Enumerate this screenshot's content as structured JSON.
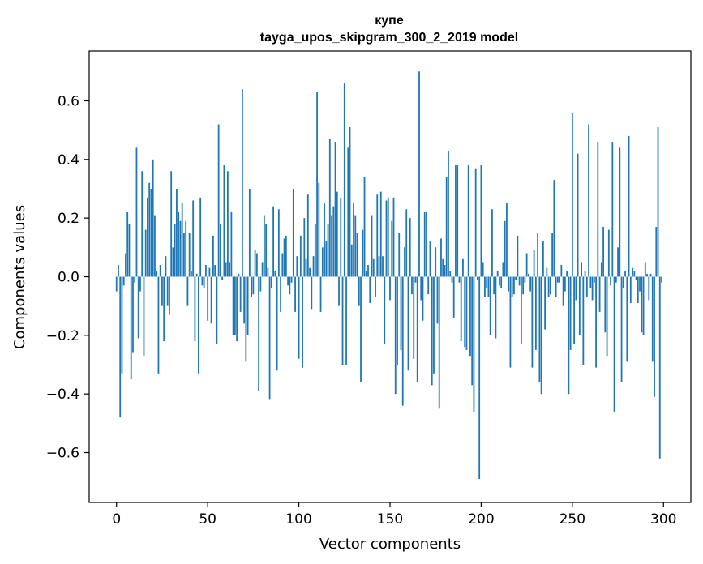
{
  "chart_data": {
    "type": "bar",
    "title_line1": "купе",
    "title_line2": "tayga_upos_skipgram_300_2_2019 model",
    "xlabel": "Vector components",
    "ylabel": "Components values",
    "xlim": [
      -15,
      315
    ],
    "ylim": [
      -0.77,
      0.77
    ],
    "xticks": [
      0,
      50,
      100,
      150,
      200,
      250,
      300
    ],
    "xtick_labels": [
      "0",
      "50",
      "100",
      "150",
      "200",
      "250",
      "300"
    ],
    "yticks": [
      -0.6,
      -0.4,
      -0.2,
      0.0,
      0.2,
      0.4,
      0.6
    ],
    "ytick_labels": [
      "−0.6",
      "−0.4",
      "−0.2",
      "0.0",
      "0.2",
      "0.4",
      "0.6"
    ],
    "bar_color": "#1f77b4",
    "values": [
      -0.05,
      0.04,
      -0.48,
      -0.33,
      -0.03,
      0.08,
      0.22,
      0.18,
      -0.35,
      -0.26,
      -0.02,
      0.44,
      -0.21,
      -0.05,
      0.36,
      -0.27,
      0.16,
      0.27,
      0.32,
      0.3,
      0.4,
      0.21,
      0.02,
      -0.33,
      0.04,
      -0.1,
      -0.22,
      0.07,
      -0.1,
      -0.13,
      0.36,
      0.1,
      0.18,
      0.3,
      0.22,
      0.19,
      0.25,
      0.15,
      0.19,
      -0.1,
      0.15,
      0.02,
      0.26,
      -0.22,
      0.01,
      -0.33,
      0.27,
      -0.03,
      -0.04,
      0.04,
      -0.15,
      0.03,
      -0.16,
      0.14,
      0.04,
      -0.23,
      0.52,
      0.18,
      -0.01,
      0.38,
      0.05,
      0.36,
      0.05,
      0.22,
      -0.2,
      -0.2,
      -0.22,
      0.01,
      -0.12,
      0.64,
      -0.16,
      -0.29,
      -0.2,
      0.3,
      -0.07,
      -0.06,
      0.09,
      0.08,
      -0.39,
      -0.05,
      0.05,
      0.21,
      0.18,
      0.03,
      -0.42,
      -0.04,
      0.24,
      0.02,
      -0.32,
      0.23,
      -0.12,
      0.08,
      0.13,
      0.14,
      -0.03,
      -0.06,
      -0.02,
      0.3,
      -0.12,
      0.07,
      -0.28,
      0.14,
      -0.31,
      0.2,
      0.06,
      0.28,
      0.03,
      -0.11,
      0.07,
      0.18,
      0.63,
      0.32,
      -0.12,
      0.1,
      0.25,
      0.12,
      0.18,
      0.47,
      0.21,
      0.24,
      0.46,
      0.29,
      -0.1,
      0.27,
      -0.3,
      0.66,
      -0.3,
      0.44,
      0.51,
      0.11,
      0.25,
      0.21,
      0.15,
      -0.1,
      -0.36,
      0.16,
      0.34,
      0.02,
      0.04,
      -0.09,
      0.21,
      0.06,
      -0.07,
      0.28,
      0.07,
      0.29,
      0.07,
      -0.23,
      0.26,
      0.27,
      -0.08,
      0.19,
      0.27,
      -0.4,
      -0.3,
      0.15,
      -0.25,
      -0.44,
      0.1,
      0.23,
      -0.32,
      0.2,
      -0.06,
      -0.28,
      -0.02,
      -0.36,
      0.7,
      -0.08,
      -0.15,
      0.22,
      0.22,
      -0.06,
      0.12,
      -0.37,
      -0.33,
      0.1,
      -0.16,
      -0.45,
      0.13,
      0.06,
      0.04,
      0.34,
      0.43,
      0.02,
      -0.02,
      -0.14,
      0.38,
      0.38,
      -0.02,
      -0.22,
      0.06,
      -0.24,
      -0.25,
      0.38,
      -0.27,
      -0.37,
      -0.46,
      0.37,
      -0.01,
      -0.69,
      0.38,
      0.05,
      -0.07,
      -0.04,
      -0.07,
      -0.2,
      0.23,
      -0.06,
      -0.21,
      0.02,
      -0.03,
      -0.04,
      0.05,
      0.19,
      0.25,
      -0.05,
      -0.31,
      -0.07,
      -0.06,
      -0.01,
      0.14,
      -0.03,
      -0.23,
      -0.06,
      -0.02,
      0.08,
      0.01,
      -0.05,
      -0.31,
      0.09,
      -0.25,
      0.15,
      -0.36,
      -0.4,
      0.12,
      -0.18,
      0.03,
      -0.07,
      -0.06,
      0.15,
      0.33,
      -0.07,
      -0.02,
      -0.02,
      0.04,
      -0.1,
      -0.05,
      0.02,
      -0.4,
      -0.25,
      0.56,
      -0.23,
      -0.08,
      0.42,
      -0.2,
      0.05,
      -0.3,
      0.02,
      -0.07,
      0.52,
      -0.04,
      -0.08,
      -0.02,
      -0.31,
      0.46,
      -0.12,
      0.05,
      0.17,
      -0.19,
      -0.27,
      0.16,
      -0.03,
      0.46,
      -0.46,
      -0.02,
      0.1,
      0.44,
      -0.36,
      -0.04,
      0.02,
      -0.29,
      0.48,
      -0.09,
      0.03,
      0.02,
      -0.01,
      -0.09,
      -0.05,
      -0.19,
      -0.2,
      0.05,
      0.01,
      -0.08,
      0.01,
      -0.29,
      -0.41,
      0.17,
      0.51,
      -0.62,
      -0.02
    ]
  }
}
